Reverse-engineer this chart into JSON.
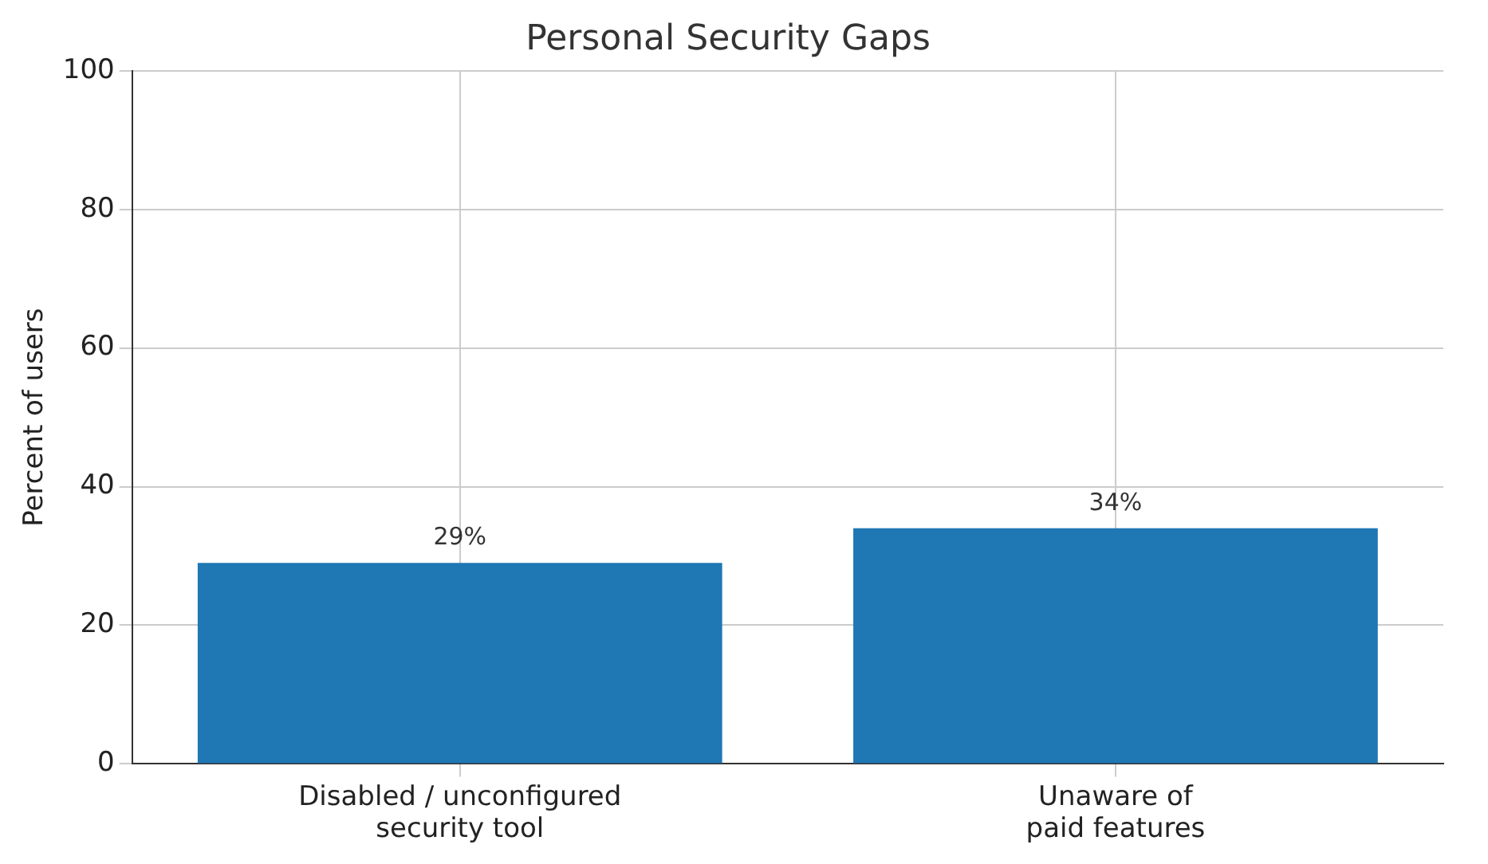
{
  "chart_data": {
    "type": "bar",
    "title": "Personal Security Gaps",
    "ylabel": "Percent of users",
    "categories": [
      "Disabled / unconfigured\nsecurity tool",
      "Unaware of\npaid features"
    ],
    "values": [
      29,
      34
    ],
    "color": "#1f77b4",
    "value_labels": [
      "29%",
      "34%"
    ],
    "ylim": [
      0,
      100
    ],
    "yticks": [
      0,
      20,
      40,
      60,
      80,
      100
    ],
    "grid": true
  }
}
